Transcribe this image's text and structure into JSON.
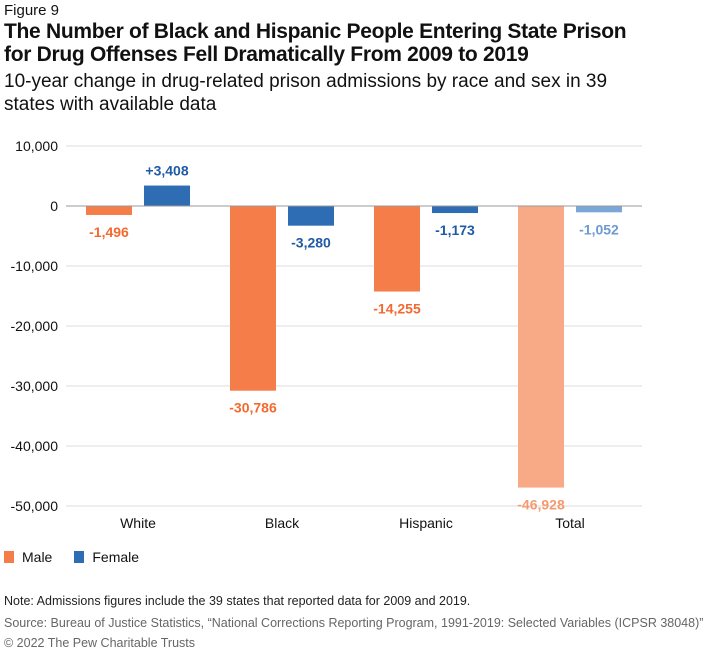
{
  "figure_label": "Figure 9",
  "title": "The Number of Black and Hispanic People Entering State Prison for Drug Offenses Fell Dramatically From 2009 to 2019",
  "subtitle": "10-year change in drug-related prison admissions by race and sex in 39 states with available data",
  "chart_data": {
    "type": "bar",
    "categories": [
      "White",
      "Black",
      "Hispanic",
      "Total"
    ],
    "series": [
      {
        "name": "Male",
        "values": [
          -1496,
          -30786,
          -14255,
          -46928
        ],
        "labels": [
          "-1,496",
          "-30,786",
          "-14,255",
          "-46,928"
        ],
        "color": "#f47d4a",
        "total_color": "#f7aa85",
        "label_color": "#f26a2e",
        "total_label_color": "#f59a70"
      },
      {
        "name": "Female",
        "values": [
          3408,
          -3280,
          -1173,
          -1052
        ],
        "labels": [
          "+3,408",
          "-3,280",
          "-1,173",
          "-1,052"
        ],
        "color": "#2e6db4",
        "total_color": "#7ba6d8",
        "label_color": "#1f5aa6",
        "total_label_color": "#6f9ad0"
      }
    ],
    "ylim": [
      -50000,
      10000
    ],
    "yticks": [
      10000,
      0,
      -10000,
      -20000,
      -30000,
      -40000,
      -50000
    ],
    "ytick_labels": [
      "10,000",
      "0",
      "-10,000",
      "-20,000",
      "-30,000",
      "-40,000",
      "-50,000"
    ],
    "grid": true,
    "legend": "bottom-left"
  },
  "legend": {
    "male": "Male",
    "female": "Female"
  },
  "note": "Note: Admissions figures include the 39 states that reported data for 2009 and 2019.",
  "source": "Source: Bureau of Justice Statistics, “National Corrections Reporting Program, 1991-2019: Selected Variables (ICPSR 38048)”",
  "copyright": "© 2022 The Pew Charitable Trusts"
}
